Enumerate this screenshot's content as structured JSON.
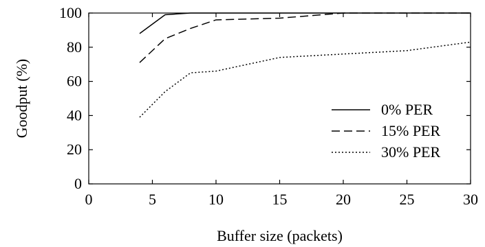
{
  "chart_data": {
    "type": "line",
    "title": "",
    "xlabel": "Buffer size (packets)",
    "ylabel": "Goodput (%)",
    "xlim": [
      0,
      30
    ],
    "ylim": [
      0,
      100
    ],
    "xticks": [
      0,
      5,
      10,
      15,
      20,
      25,
      30
    ],
    "yticks": [
      0,
      20,
      40,
      60,
      80,
      100
    ],
    "grid": false,
    "legend_position": "lower-right",
    "series": [
      {
        "name": "0% PER",
        "style": "solid",
        "x": [
          4,
          6,
          8,
          10,
          15,
          20,
          25,
          30
        ],
        "y": [
          88,
          99,
          100,
          100,
          100,
          100,
          100,
          100
        ]
      },
      {
        "name": "15% PER",
        "style": "dashed",
        "x": [
          4,
          6,
          8,
          10,
          15,
          20,
          25,
          30
        ],
        "y": [
          71,
          85,
          91,
          96,
          97,
          100,
          100,
          100
        ]
      },
      {
        "name": "30% PER",
        "style": "dotted",
        "x": [
          4,
          6,
          8,
          10,
          15,
          20,
          25,
          30
        ],
        "y": [
          39,
          54,
          65,
          66,
          74,
          76,
          78,
          83
        ]
      }
    ]
  }
}
